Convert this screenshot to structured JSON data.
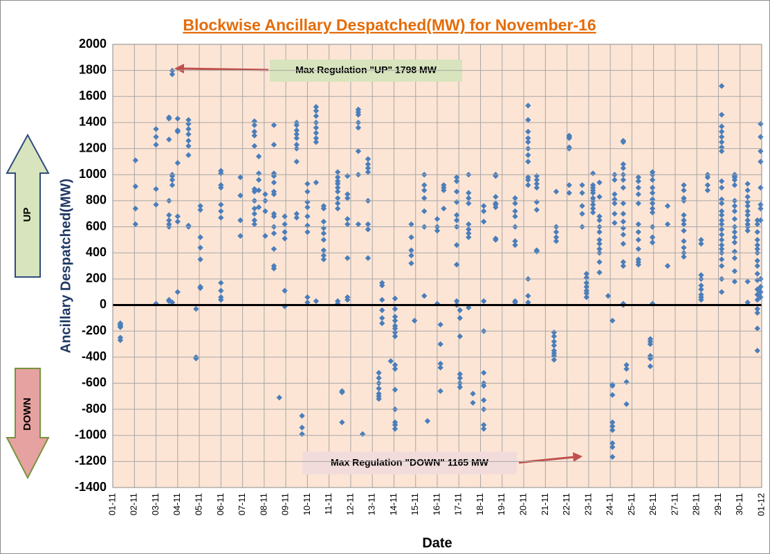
{
  "chart_data": {
    "type": "scatter",
    "title": "Blockwise Ancillary Despatched(MW) for November-16",
    "x_label": "Date",
    "y_label": "Ancillary Despatched(MW)",
    "color": "#4a7ebb",
    "grid": true,
    "annotations": {
      "up": "UP",
      "down": "DOWN",
      "max_up": "Max Regulation \"UP\" 1798 MW",
      "max_down": "Max Regulation \"DOWN\" 1165 MW"
    },
    "xlim": [
      0,
      30
    ],
    "xticks": [
      {
        "value": 0,
        "label": "01-11"
      },
      {
        "value": 1,
        "label": "02-11"
      },
      {
        "value": 2,
        "label": "03-11"
      },
      {
        "value": 3,
        "label": "04-11"
      },
      {
        "value": 4,
        "label": "05-11"
      },
      {
        "value": 5,
        "label": "06-11"
      },
      {
        "value": 6,
        "label": "07-11"
      },
      {
        "value": 7,
        "label": "08-11"
      },
      {
        "value": 8,
        "label": "09-11"
      },
      {
        "value": 9,
        "label": "10-11"
      },
      {
        "value": 10,
        "label": "11-11"
      },
      {
        "value": 11,
        "label": "12-11"
      },
      {
        "value": 12,
        "label": "13-11"
      },
      {
        "value": 13,
        "label": "14-11"
      },
      {
        "value": 14,
        "label": "15-11"
      },
      {
        "value": 15,
        "label": "16-11"
      },
      {
        "value": 16,
        "label": "17-11"
      },
      {
        "value": 17,
        "label": "18-11"
      },
      {
        "value": 18,
        "label": "19-11"
      },
      {
        "value": 19,
        "label": "20-11"
      },
      {
        "value": 20,
        "label": "21-11"
      },
      {
        "value": 21,
        "label": "22-11"
      },
      {
        "value": 22,
        "label": "23-11"
      },
      {
        "value": 23,
        "label": "24-11"
      },
      {
        "value": 24,
        "label": "25-11"
      },
      {
        "value": 25,
        "label": "26-11"
      },
      {
        "value": 26,
        "label": "27-11"
      },
      {
        "value": 27,
        "label": "28-11"
      },
      {
        "value": 28,
        "label": "29-11"
      },
      {
        "value": 29,
        "label": "30-11"
      },
      {
        "value": 30,
        "label": "01-12"
      }
    ],
    "ylim": [
      -1400,
      2000
    ],
    "yticks": [
      -1400,
      -1200,
      -1000,
      -800,
      -600,
      -400,
      -200,
      0,
      200,
      400,
      600,
      800,
      1000,
      1200,
      1400,
      1600,
      1800,
      2000
    ],
    "x": [
      0.35,
      0.35,
      0.35,
      0.35,
      0.35,
      0.35,
      1.05,
      1.05,
      1.05,
      1.05,
      2.0,
      2.0,
      2.0,
      2.0,
      2.0,
      2.0,
      2.6,
      2.6,
      2.6,
      2.6,
      2.6,
      2.6,
      2.6,
      2.6,
      2.6,
      2.6,
      2.75,
      2.75,
      2.75,
      2.75,
      2.75,
      2.75,
      2.75,
      3.0,
      3.0,
      3.0,
      3.0,
      3.0,
      3.0,
      3.0,
      3.5,
      3.5,
      3.5,
      3.5,
      3.5,
      3.5,
      3.5,
      3.5,
      3.5,
      3.85,
      3.85,
      3.85,
      4.05,
      4.05,
      4.05,
      4.05,
      4.05,
      4.05,
      4.05,
      5.0,
      5.0,
      5.0,
      5.0,
      5.0,
      5.0,
      5.0,
      5.0,
      5.0,
      5.0,
      5.0,
      5.9,
      5.9,
      5.9,
      5.9,
      6.55,
      6.55,
      6.55,
      6.55,
      6.55,
      6.55,
      6.55,
      6.55,
      6.55,
      6.55,
      6.55,
      6.55,
      6.75,
      6.75,
      6.75,
      6.75,
      6.75,
      7.05,
      7.05,
      7.05,
      7.05,
      7.45,
      7.45,
      7.45,
      7.45,
      7.45,
      7.45,
      7.45,
      7.45,
      7.45,
      7.45,
      7.45,
      7.45,
      7.45,
      7.45,
      7.7,
      7.95,
      7.95,
      7.95,
      7.95,
      7.95,
      7.95,
      8.5,
      8.5,
      8.5,
      8.5,
      8.5,
      8.5,
      8.5,
      8.5,
      8.5,
      8.5,
      8.75,
      8.75,
      8.75,
      9.0,
      9.0,
      9.0,
      9.0,
      9.0,
      9.0,
      9.0,
      9.0,
      9.0,
      9.4,
      9.4,
      9.4,
      9.4,
      9.4,
      9.4,
      9.4,
      9.4,
      9.4,
      9.4,
      9.75,
      9.75,
      9.75,
      9.75,
      9.75,
      9.75,
      9.75,
      9.75,
      9.75,
      10.4,
      10.4,
      10.4,
      10.4,
      10.4,
      10.4,
      10.4,
      10.4,
      10.4,
      10.4,
      10.4,
      10.6,
      10.6,
      10.6,
      10.85,
      10.85,
      10.85,
      10.85,
      10.85,
      10.85,
      10.85,
      10.85,
      11.35,
      11.35,
      11.35,
      11.35,
      11.35,
      11.35,
      11.35,
      11.35,
      11.55,
      11.8,
      11.8,
      11.8,
      11.8,
      11.8,
      11.8,
      11.8,
      11.8,
      12.3,
      12.3,
      12.3,
      12.3,
      12.3,
      12.3,
      12.3,
      12.45,
      12.45,
      12.45,
      12.45,
      12.45,
      12.45,
      12.85,
      13.05,
      13.05,
      13.05,
      13.05,
      13.05,
      13.05,
      13.05,
      13.05,
      13.05,
      13.05,
      13.05,
      13.05,
      13.05,
      13.05,
      13.05,
      13.8,
      13.8,
      13.8,
      13.8,
      13.8,
      13.95,
      14.4,
      14.4,
      14.4,
      14.4,
      14.4,
      14.4,
      14.4,
      14.55,
      15.0,
      15.0,
      15.0,
      15.0,
      15.15,
      15.15,
      15.15,
      15.15,
      15.15,
      15.3,
      15.3,
      15.3,
      15.3,
      15.9,
      15.9,
      15.9,
      15.9,
      15.9,
      15.9,
      15.9,
      15.9,
      15.9,
      15.9,
      15.9,
      16.05,
      16.05,
      16.05,
      16.05,
      16.05,
      16.05,
      16.05,
      16.45,
      16.45,
      16.45,
      16.45,
      16.45,
      16.45,
      16.45,
      16.45,
      16.45,
      16.65,
      16.65,
      17.15,
      17.15,
      17.15,
      17.15,
      17.15,
      17.15,
      17.15,
      17.15,
      17.15,
      17.15,
      17.15,
      17.15,
      17.7,
      17.7,
      17.7,
      17.7,
      17.7,
      17.7,
      17.7,
      17.7,
      18.6,
      18.6,
      18.6,
      18.6,
      18.6,
      18.6,
      18.6,
      18.6,
      18.6,
      19.2,
      19.2,
      19.2,
      19.2,
      19.2,
      19.2,
      19.2,
      19.2,
      19.2,
      19.2,
      19.2,
      19.2,
      19.2,
      19.2,
      19.6,
      19.6,
      19.6,
      19.6,
      19.6,
      19.6,
      19.6,
      19.6,
      20.4,
      20.4,
      20.4,
      20.4,
      20.4,
      20.4,
      20.4,
      20.4,
      20.5,
      20.5,
      20.5,
      20.5,
      20.5,
      21.1,
      21.1,
      21.1,
      21.1,
      21.1,
      21.1,
      21.1,
      21.7,
      21.7,
      21.7,
      21.7,
      21.7,
      21.9,
      21.9,
      21.9,
      21.9,
      21.9,
      21.9,
      21.9,
      22.2,
      22.2,
      22.2,
      22.2,
      22.2,
      22.2,
      22.2,
      22.2,
      22.2,
      22.2,
      22.5,
      22.5,
      22.5,
      22.5,
      22.5,
      22.5,
      22.5,
      22.5,
      22.5,
      22.5,
      22.5,
      22.5,
      22.9,
      23.2,
      23.2,
      23.2,
      23.2,
      23.2,
      23.2,
      23.2,
      23.1,
      23.1,
      23.1,
      23.1,
      23.1,
      23.1,
      23.1,
      23.1,
      23.1,
      23.1,
      23.6,
      23.6,
      23.6,
      23.6,
      23.6,
      23.6,
      23.6,
      23.6,
      23.6,
      23.6,
      23.6,
      23.6,
      23.6,
      23.6,
      23.6,
      23.6,
      23.6,
      23.75,
      23.75,
      23.75,
      23.75,
      24.3,
      24.3,
      24.3,
      24.3,
      24.3,
      24.3,
      24.3,
      24.3,
      24.3,
      24.3,
      24.3,
      24.3,
      24.95,
      24.95,
      24.95,
      24.95,
      24.95,
      24.95,
      24.95,
      24.95,
      24.95,
      24.95,
      24.95,
      24.95,
      24.95,
      24.85,
      24.85,
      24.85,
      24.85,
      24.85,
      24.85,
      25.65,
      25.65,
      25.65,
      26.4,
      26.4,
      26.4,
      26.4,
      26.4,
      26.4,
      26.4,
      26.4,
      26.4,
      26.4,
      26.4,
      26.4,
      27.2,
      27.2,
      27.2,
      27.2,
      27.2,
      27.2,
      27.2,
      27.2,
      27.2,
      27.5,
      27.5,
      27.5,
      27.5,
      28.15,
      28.15,
      28.15,
      28.15,
      28.15,
      28.15,
      28.15,
      28.15,
      28.15,
      28.15,
      28.15,
      28.15,
      28.15,
      28.15,
      28.15,
      28.15,
      28.15,
      28.15,
      28.15,
      28.15,
      28.15,
      28.15,
      28.15,
      28.15,
      28.15,
      28.15,
      28.75,
      28.75,
      28.75,
      28.75,
      28.75,
      28.75,
      28.75,
      28.75,
      28.75,
      28.75,
      28.75,
      28.75,
      28.75,
      28.75,
      28.75,
      28.75,
      28.75,
      29.35,
      29.35,
      29.35,
      29.35,
      29.35,
      29.35,
      29.35,
      29.35,
      29.35,
      29.35,
      29.35,
      29.35,
      29.35,
      29.8,
      29.8,
      29.8,
      29.8,
      29.8,
      29.8,
      29.8,
      29.8,
      29.8,
      29.8,
      29.8,
      29.8,
      29.8,
      29.8,
      29.8,
      29.8,
      29.8,
      29.8,
      29.95,
      29.95,
      29.95,
      29.95,
      29.95,
      29.95,
      29.95,
      29.95,
      29.95,
      29.95,
      29.95,
      29.95
    ],
    "values": [
      -140,
      -150,
      -160,
      -170,
      -250,
      -270,
      1110,
      910,
      740,
      620,
      1350,
      1290,
      1230,
      890,
      770,
      10,
      1440,
      1430,
      1270,
      800,
      690,
      650,
      620,
      600,
      40,
      30,
      1798,
      1770,
      1000,
      990,
      960,
      920,
      20,
      1430,
      1340,
      1330,
      1090,
      680,
      640,
      100,
      1420,
      1390,
      1350,
      1310,
      1260,
      1220,
      1150,
      610,
      600,
      -30,
      -410,
      -400,
      760,
      730,
      520,
      440,
      350,
      140,
      130,
      1030,
      1010,
      920,
      900,
      770,
      720,
      670,
      170,
      110,
      60,
      40,
      980,
      840,
      650,
      530,
      1410,
      1380,
      1330,
      1300,
      1220,
      890,
      870,
      800,
      740,
      700,
      650,
      620,
      1140,
      1010,
      960,
      880,
      750,
      850,
      800,
      720,
      530,
      1380,
      1230,
      1010,
      990,
      940,
      870,
      850,
      700,
      680,
      600,
      550,
      430,
      300,
      280,
      -710,
      110,
      -10,
      680,
      620,
      560,
      510,
      1400,
      1380,
      1340,
      1310,
      1280,
      1230,
      1200,
      1100,
      700,
      670,
      -850,
      -940,
      -990,
      930,
      870,
      790,
      750,
      680,
      610,
      560,
      60,
      20,
      1520,
      1490,
      1450,
      1400,
      1360,
      1320,
      1280,
      1250,
      940,
      30,
      760,
      740,
      640,
      590,
      550,
      500,
      420,
      380,
      350,
      1020,
      980,
      950,
      930,
      900,
      870,
      820,
      780,
      740,
      30,
      10,
      -670,
      -660,
      -900,
      990,
      850,
      820,
      660,
      620,
      360,
      60,
      40,
      1500,
      1480,
      1460,
      1400,
      1360,
      1180,
      1000,
      620,
      -990,
      1120,
      1080,
      1050,
      1020,
      800,
      620,
      580,
      360,
      -520,
      -560,
      -600,
      -640,
      -680,
      -720,
      -700,
      170,
      150,
      40,
      -40,
      -100,
      -140,
      -430,
      -90,
      -120,
      -160,
      -180,
      -240,
      -460,
      -490,
      -650,
      -800,
      -900,
      -920,
      -950,
      -30,
      50,
      -210,
      620,
      520,
      420,
      380,
      320,
      -120,
      1000,
      920,
      880,
      820,
      720,
      600,
      70,
      -890,
      660,
      600,
      570,
      10,
      -150,
      -300,
      -450,
      -480,
      -660,
      920,
      900,
      880,
      740,
      980,
      950,
      870,
      790,
      690,
      650,
      600,
      460,
      310,
      30,
      0,
      -40,
      -100,
      -240,
      -530,
      -560,
      -600,
      -630,
      1000,
      860,
      820,
      780,
      620,
      580,
      550,
      520,
      -20,
      -680,
      -750,
      760,
      720,
      640,
      30,
      -520,
      -600,
      -620,
      -730,
      -800,
      -950,
      -920,
      -200,
      1000,
      990,
      830,
      780,
      770,
      750,
      510,
      500,
      820,
      780,
      720,
      680,
      600,
      490,
      460,
      30,
      20,
      1530,
      1420,
      1330,
      1280,
      1250,
      1200,
      1150,
      1100,
      980,
      960,
      920,
      200,
      70,
      20,
      990,
      960,
      930,
      900,
      790,
      730,
      420,
      410,
      -210,
      -240,
      -280,
      -310,
      -350,
      -370,
      -390,
      -420,
      870,
      600,
      560,
      520,
      490,
      1300,
      1290,
      1280,
      1210,
      1200,
      920,
      860,
      920,
      860,
      760,
      700,
      600,
      240,
      210,
      170,
      140,
      110,
      90,
      60,
      1010,
      920,
      900,
      880,
      860,
      820,
      800,
      770,
      740,
      710,
      680,
      650,
      600,
      560,
      500,
      470,
      430,
      400,
      330,
      250,
      940,
      830,
      70,
      1000,
      960,
      850,
      810,
      780,
      700,
      630,
      -120,
      -610,
      -620,
      -690,
      -900,
      -930,
      -960,
      -1060,
      -1090,
      -1165,
      1260,
      1250,
      1080,
      1050,
      1000,
      960,
      900,
      780,
      700,
      640,
      590,
      540,
      470,
      330,
      300,
      10,
      0,
      -460,
      -490,
      -590,
      -760,
      980,
      950,
      900,
      850,
      780,
      620,
      560,
      500,
      430,
      350,
      330,
      310,
      1020,
      1000,
      960,
      900,
      860,
      810,
      780,
      740,
      710,
      600,
      520,
      480,
      10,
      -260,
      -280,
      -300,
      -390,
      -410,
      -470,
      760,
      620,
      300,
      920,
      880,
      820,
      800,
      690,
      650,
      620,
      570,
      490,
      440,
      400,
      370,
      500,
      470,
      230,
      200,
      150,
      120,
      80,
      60,
      40,
      1000,
      980,
      920,
      880,
      1680,
      1460,
      1370,
      1330,
      1290,
      1250,
      1210,
      1180,
      950,
      900,
      810,
      780,
      720,
      690,
      650,
      620,
      580,
      540,
      500,
      460,
      430,
      400,
      350,
      300,
      200,
      100,
      990,
      920,
      800,
      760,
      720,
      660,
      600,
      560,
      520,
      480,
      410,
      360,
      260,
      180,
      1000,
      980,
      960,
      930,
      880,
      830,
      790,
      760,
      720,
      690,
      650,
      620,
      600,
      570,
      180,
      20,
      650,
      620,
      560,
      500,
      460,
      430,
      400,
      340,
      300,
      240,
      190,
      120,
      80,
      40,
      -30,
      -60,
      -180,
      -350,
      770,
      740,
      1390,
      1290,
      1180,
      1100,
      900,
      650,
      200,
      140,
      100,
      60
    ]
  }
}
